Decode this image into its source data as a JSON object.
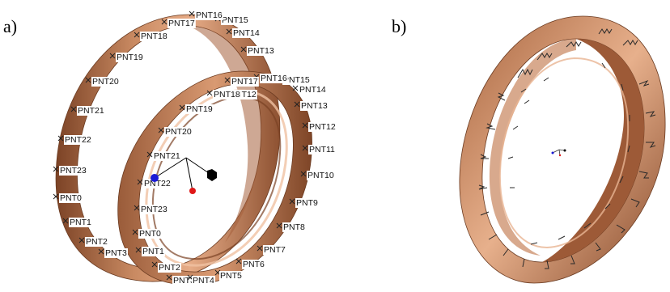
{
  "panels": [
    {
      "letter": "a)"
    },
    {
      "letter": "b)"
    }
  ],
  "outer_ring_points": [
    "PNT0",
    "PNT1",
    "PNT2",
    "PNT3",
    "PNT4",
    "PNT5",
    "PNT6",
    "PNT7",
    "PNT8",
    "PNT9",
    "PNT10",
    "PNT11",
    "PNT12",
    "PNT13",
    "PNT14",
    "PNT15",
    "PNT16",
    "PNT17",
    "PNT18",
    "PNT19",
    "PNT20",
    "PNT21",
    "PNT22",
    "PNT23"
  ],
  "inner_ring_points": [
    "PNT0",
    "PNT1",
    "PNT2",
    "PNT3",
    "PNT4",
    "PNT5",
    "PNT6",
    "PNT7",
    "PNT8",
    "PNT9",
    "PNT10",
    "PNT11",
    "PNT12",
    "PNT13",
    "PNT14",
    "PNT15",
    "PNT16",
    "PNT17",
    "PNT18",
    "PNT19",
    "PNT20",
    "PNT21",
    "PNT22",
    "PNT23"
  ],
  "colors": {
    "ring_dark": "#8a4d2e",
    "ring_mid": "#b8704b",
    "ring_light": "#e3a782",
    "marker_blue": "#1a1ad6",
    "marker_red": "#e01818",
    "marker_black": "#000000"
  }
}
